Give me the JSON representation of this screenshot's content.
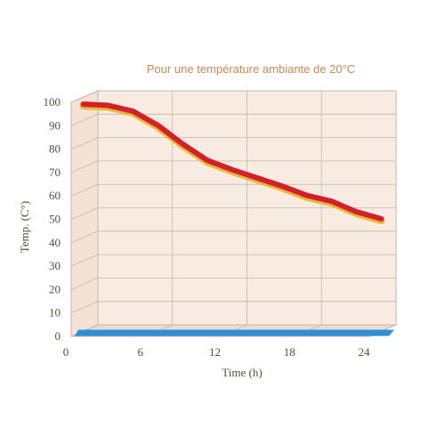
{
  "chart_data": {
    "type": "line",
    "title": "Pour une température ambiante de 20°C",
    "xlabel": "Time (h)",
    "ylabel": "Temp. (C°)",
    "xlim": [
      0,
      24
    ],
    "ylim": [
      0,
      100
    ],
    "x_ticks": [
      0,
      6,
      12,
      18,
      24
    ],
    "y_ticks": [
      0,
      10,
      20,
      30,
      40,
      50,
      60,
      70,
      80,
      90,
      100
    ],
    "grid": true,
    "three_d": true,
    "series": [
      {
        "color": "#d4202a",
        "x": [
          0,
          2,
          4,
          6,
          8,
          10,
          12,
          14,
          16,
          18,
          20,
          22,
          24
        ],
        "values": [
          97,
          96.5,
          94,
          88,
          80,
          73,
          69,
          65.5,
          62,
          58,
          55.5,
          51,
          48
        ]
      },
      {
        "color": "#2f8fd6",
        "x": [
          0,
          24
        ],
        "values": [
          0,
          0
        ]
      }
    ],
    "colors": {
      "background": "#f8ebe2",
      "grid": "#c7b6ab",
      "text": "#5a4a40",
      "title": "#c98a4e"
    }
  }
}
